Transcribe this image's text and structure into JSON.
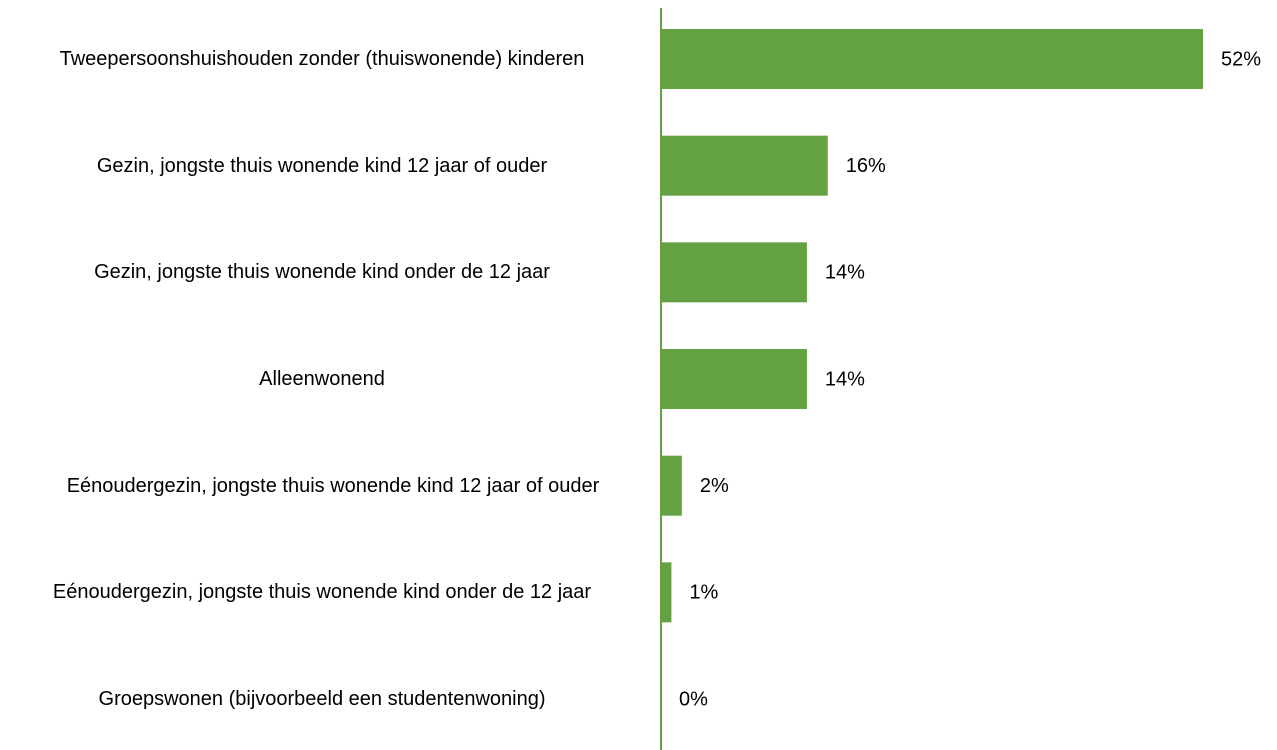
{
  "chart_data": {
    "type": "bar",
    "orientation": "horizontal",
    "categories": [
      "Tweepersoonshuishouden zonder (thuiswonende) kinderen",
      "Gezin, jongste thuis wonende kind 12 jaar of ouder",
      "Gezin, jongste thuis wonende kind onder de 12 jaar",
      "Alleenwonend",
      "Eénoudergezin, jongste thuis wonende kind 12 jaar of ouder",
      "Eénoudergezin, jongste thuis wonende kind onder de 12 jaar",
      "Groepswonen (bijvoorbeeld een studentenwoning)"
    ],
    "values": [
      52,
      16,
      14,
      14,
      2,
      1,
      0
    ],
    "value_labels": [
      "52%",
      "16%",
      "14%",
      "14%",
      "2%",
      "1%",
      "0%"
    ],
    "color": "#64a142"
  }
}
